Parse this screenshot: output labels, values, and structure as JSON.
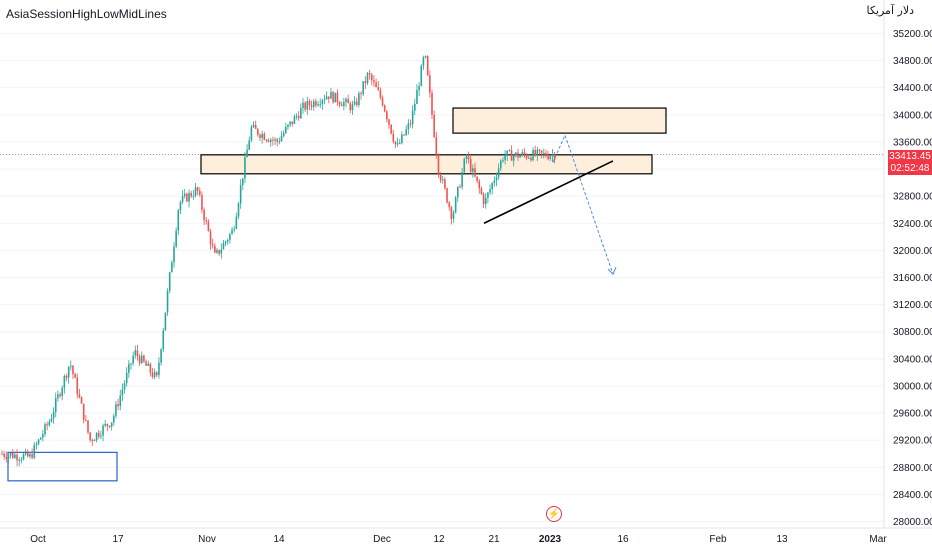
{
  "indicator": {
    "title": "AsiaSessionHighLowMidLines"
  },
  "currency": {
    "label": "دلار آمریکا"
  },
  "last_price": {
    "value": "33413.45",
    "timer": "02:52:48"
  },
  "events": {
    "icon": "lightning-icon"
  },
  "colors": {
    "up": "#26a69a",
    "down": "#ef5350",
    "zone_fill": "#fdecd6",
    "blue_zone": "#2c5fd1",
    "projection": "#4a8fd6",
    "price_line": "#f23645"
  },
  "chart_data": {
    "type": "candlestick",
    "title": "",
    "y_axis": {
      "min": 28000,
      "max": 35200,
      "ticks": [
        "28000.00",
        "28400.00",
        "28800.00",
        "29200.00",
        "29600.00",
        "30000.00",
        "30400.00",
        "30800.00",
        "31200.00",
        "31600.00",
        "32000.00",
        "32400.00",
        "32800.00",
        "33200.00",
        "33600.00",
        "34000.00",
        "34400.00",
        "34800.00",
        "35200.00"
      ]
    },
    "x_axis": {
      "labels": [
        "Oct",
        "17",
        "Nov",
        "14",
        "Dec",
        "12",
        "21",
        "2023",
        "16",
        "Feb",
        "13",
        "Mar"
      ]
    },
    "price_path": [
      {
        "x": "Oct",
        "y": 29000
      },
      {
        "x": "Oct",
        "y": 28950
      },
      {
        "x": "Oct",
        "y": 29500
      },
      {
        "x": "Oct",
        "y": 30350
      },
      {
        "x": "17",
        "y": 29200
      },
      {
        "x": "17",
        "y": 29500
      },
      {
        "x": "17",
        "y": 30500
      },
      {
        "x": "17",
        "y": 30100
      },
      {
        "x": "Nov",
        "y": 32700
      },
      {
        "x": "Nov",
        "y": 32900
      },
      {
        "x": "Nov",
        "y": 31900
      },
      {
        "x": "Nov",
        "y": 32300
      },
      {
        "x": "14",
        "y": 33800
      },
      {
        "x": "14",
        "y": 33600
      },
      {
        "x": "14",
        "y": 34100
      },
      {
        "x": "14",
        "y": 34300
      },
      {
        "x": "Dec",
        "y": 34100
      },
      {
        "x": "Dec",
        "y": 34600
      },
      {
        "x": "Dec",
        "y": 34200
      },
      {
        "x": "Dec",
        "y": 33500
      },
      {
        "x": "12",
        "y": 33900
      },
      {
        "x": "12",
        "y": 34900
      },
      {
        "x": "12",
        "y": 33200
      },
      {
        "x": "12",
        "y": 32500
      },
      {
        "x": "21",
        "y": 33400
      },
      {
        "x": "21",
        "y": 32700
      },
      {
        "x": "21",
        "y": 33400
      },
      {
        "x": "2023",
        "y": 33413.45
      }
    ],
    "zones": [
      {
        "name": "resistance-zone-upper",
        "from_x": "12",
        "to_x": "16",
        "y_low": 33730,
        "y_high": 34100
      },
      {
        "name": "resistance-zone-main",
        "from_x": "Nov",
        "to_x": "16",
        "y_low": 33130,
        "y_high": 33410
      },
      {
        "name": "support-zone-october",
        "from_x": "Oct",
        "to_x": "17",
        "y_low": 28600,
        "y_high": 29020
      }
    ],
    "trendline": {
      "from": {
        "x": "12",
        "y": 32400
      },
      "to": {
        "x": "16",
        "y": 33320
      }
    },
    "projection": [
      {
        "x": "2023",
        "y": 33300
      },
      {
        "x": "2023",
        "y": 33700
      },
      {
        "x": "16",
        "y": 31650
      }
    ],
    "last_price": 33413.45
  }
}
